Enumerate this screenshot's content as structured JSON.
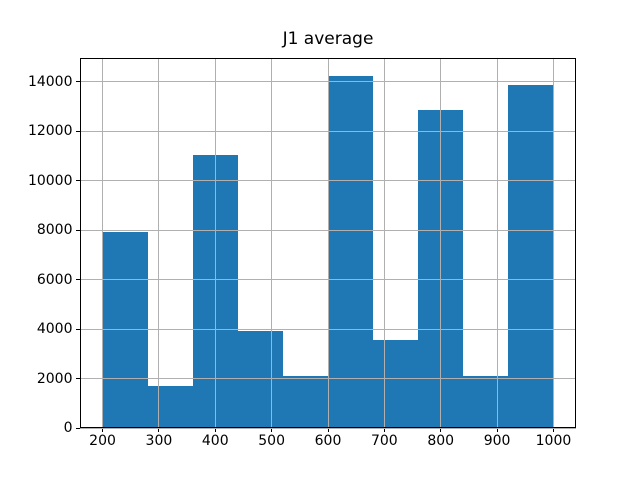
{
  "chart_data": {
    "type": "bar",
    "subtype": "histogram",
    "title": "J1 average",
    "xlabel": "",
    "ylabel": "",
    "bin_edges": [
      200,
      280,
      360,
      440,
      520,
      600,
      680,
      760,
      840,
      920,
      1000
    ],
    "values": [
      7920,
      1690,
      11040,
      3930,
      2100,
      14230,
      3540,
      12850,
      2110,
      13870
    ],
    "xticks": [
      200,
      300,
      400,
      500,
      600,
      700,
      800,
      900,
      1000
    ],
    "yticks": [
      0,
      2000,
      4000,
      6000,
      8000,
      10000,
      12000,
      14000
    ],
    "xlim": [
      160,
      1040
    ],
    "ylim": [
      0,
      14950
    ],
    "grid": true,
    "grid_above_bars": true,
    "legend": "none",
    "bar_color": "#1f77b4",
    "grid_color": "#b0b0b0",
    "spine_color": "#000000",
    "text_color": "#000000",
    "background_color": "#ffffff"
  }
}
